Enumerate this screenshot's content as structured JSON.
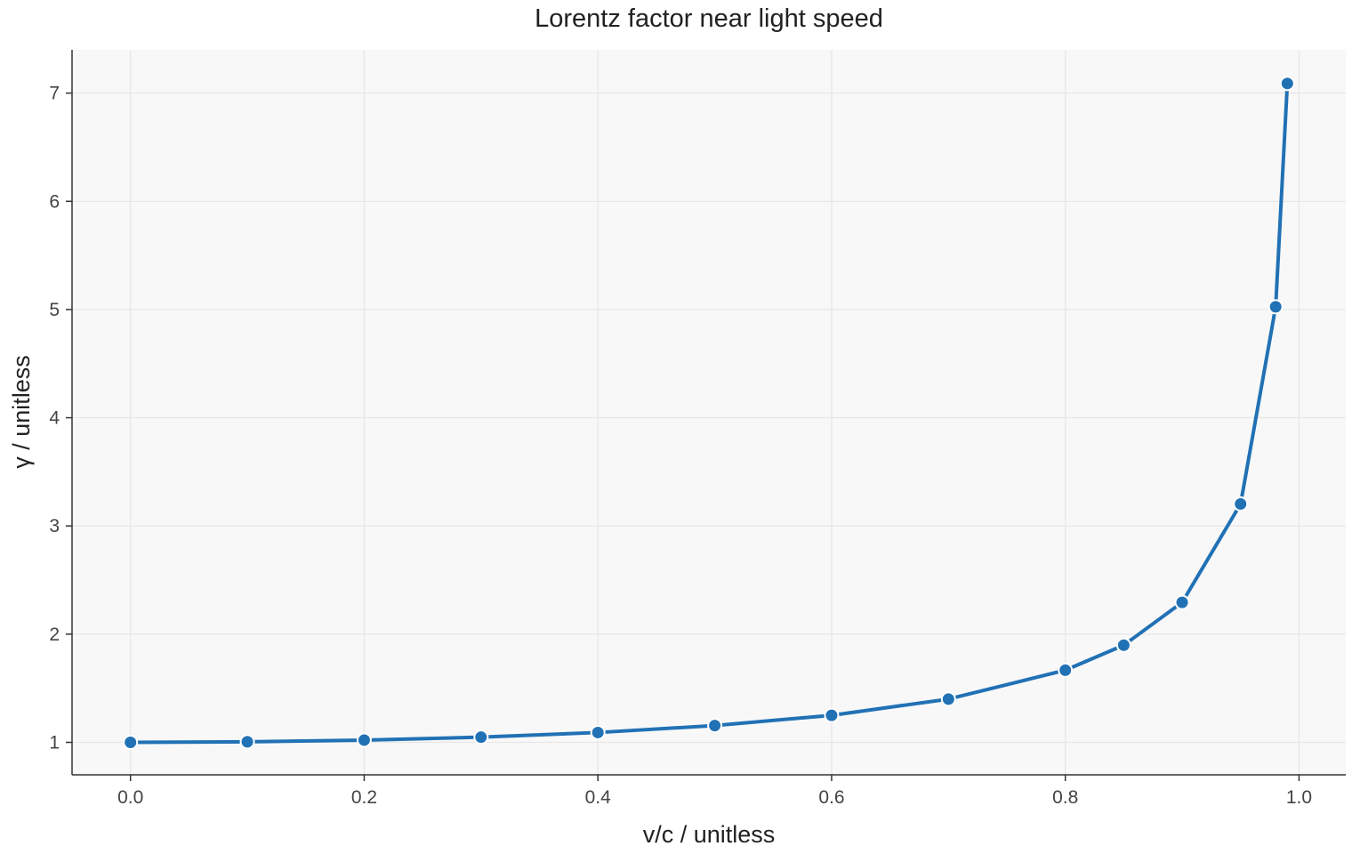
{
  "chart_data": {
    "type": "line",
    "title": "Lorentz factor near light speed",
    "xlabel": "v/c / unitless",
    "ylabel": "γ / unitless",
    "xlim": [
      -0.05,
      1.04
    ],
    "ylim": [
      0.7,
      7.4
    ],
    "x_ticks": [
      0.0,
      0.2,
      0.4,
      0.6,
      0.8,
      1.0
    ],
    "x_tick_labels": [
      "0.0",
      "0.2",
      "0.4",
      "0.6",
      "0.8",
      "1.0"
    ],
    "y_ticks": [
      1,
      2,
      3,
      4,
      5,
      6,
      7
    ],
    "y_tick_labels": [
      "1",
      "2",
      "3",
      "4",
      "5",
      "6",
      "7"
    ],
    "grid": true,
    "series": [
      {
        "color": "#2171b5",
        "marker": "circle",
        "x": [
          0.0,
          0.1,
          0.2,
          0.3,
          0.4,
          0.5,
          0.6,
          0.7,
          0.8,
          0.85,
          0.9,
          0.95,
          0.98,
          0.99
        ],
        "y": [
          1.0,
          1.005,
          1.021,
          1.048,
          1.091,
          1.155,
          1.25,
          1.4,
          1.667,
          1.898,
          2.294,
          3.203,
          5.025,
          7.089
        ]
      }
    ],
    "colors": {
      "plot_background": "#f8f8f8",
      "grid": "#e6e6e6",
      "marker_edge": "#ffffff"
    }
  }
}
